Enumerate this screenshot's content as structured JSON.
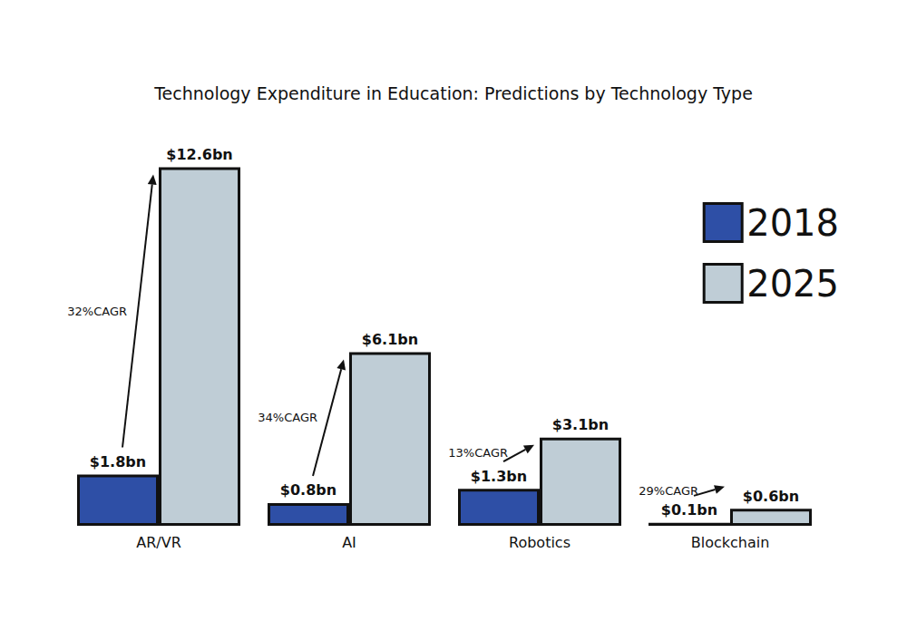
{
  "chart_data": {
    "type": "bar",
    "title": "Technology Expenditure in Education: Predictions by Technology Type",
    "categories": [
      "AR/VR",
      "AI",
      "Robotics",
      "Blockchain"
    ],
    "series": [
      {
        "name": "2018",
        "color": "#2e4fa6",
        "values": [
          1.8,
          0.8,
          1.3,
          0.1
        ],
        "value_labels": [
          "$1.8bn",
          "$0.8bn",
          "$1.3bn",
          "$0.1bn"
        ]
      },
      {
        "name": "2025",
        "color": "#bfcdd6",
        "values": [
          12.6,
          6.1,
          3.1,
          0.6
        ],
        "value_labels": [
          "$12.6bn",
          "$6.1bn",
          "$3.1bn",
          "$0.6bn"
        ]
      }
    ],
    "annotations": [
      {
        "category": "AR/VR",
        "text": "32%CAGR"
      },
      {
        "category": "AI",
        "text": "34%CAGR"
      },
      {
        "category": "Robotics",
        "text": "13%CAGR"
      },
      {
        "category": "Blockchain",
        "text": "29%CAGR"
      }
    ],
    "ylim": [
      0,
      13
    ],
    "yticks": [
      0,
      13
    ],
    "grid": false,
    "legend": "upper right",
    "data_labels": true,
    "tick_labels": "x"
  }
}
